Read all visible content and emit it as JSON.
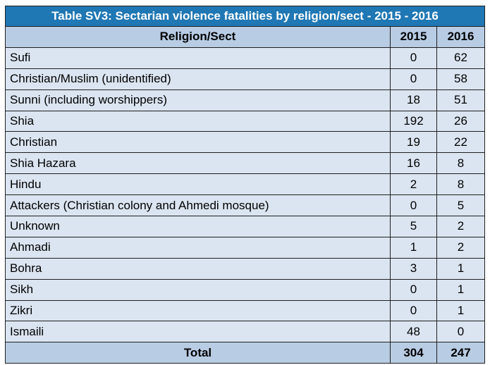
{
  "table": {
    "title": "Table SV3: Sectarian violence fatalities by religion/sect - 2015 - 2016",
    "headers": [
      "Religion/Sect",
      "2015",
      "2016"
    ],
    "rows": [
      {
        "label": "Sufi",
        "v2015": "0",
        "v2016": "62"
      },
      {
        "label": "Christian/Muslim (unidentified)",
        "v2015": "0",
        "v2016": "58"
      },
      {
        "label": "Sunni (including worshippers)",
        "v2015": "18",
        "v2016": "51"
      },
      {
        "label": "Shia",
        "v2015": "192",
        "v2016": "26"
      },
      {
        "label": "Christian",
        "v2015": "19",
        "v2016": "22"
      },
      {
        "label": "Shia Hazara",
        "v2015": "16",
        "v2016": "8"
      },
      {
        "label": "Hindu",
        "v2015": "2",
        "v2016": "8"
      },
      {
        "label": "Attackers (Christian colony and Ahmedi mosque)",
        "v2015": "0",
        "v2016": "5"
      },
      {
        "label": "Unknown",
        "v2015": "5",
        "v2016": "2"
      },
      {
        "label": "Ahmadi",
        "v2015": "1",
        "v2016": "2"
      },
      {
        "label": "Bohra",
        "v2015": "3",
        "v2016": "1"
      },
      {
        "label": "Sikh",
        "v2015": "0",
        "v2016": "1"
      },
      {
        "label": "Zikri",
        "v2015": "0",
        "v2016": "1"
      },
      {
        "label": "Ismaili",
        "v2015": "48",
        "v2016": "0"
      }
    ],
    "total": {
      "label": "Total",
      "v2015": "304",
      "v2016": "247"
    }
  },
  "colors": {
    "title_bg": "#1f77b4",
    "header_bg": "#b8cce4",
    "row_bg": "#dbe5f1"
  }
}
